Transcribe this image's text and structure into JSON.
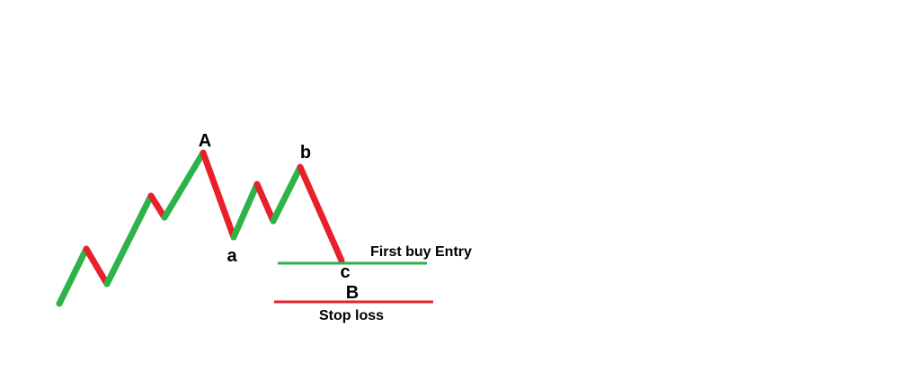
{
  "colors": {
    "up": "#2db34a",
    "down": "#e8202a",
    "entry_line": "#2db34a",
    "stop_line": "#e8202a",
    "entry_text": "#000000",
    "stop_text": "#e8202a",
    "label_text": "#000000",
    "background": "#ffffff"
  },
  "labels": {
    "A": "A",
    "a": "a",
    "b": "b",
    "c": "c",
    "B": "B",
    "entry": "First buy Entry",
    "stop": "Stop loss"
  }
}
